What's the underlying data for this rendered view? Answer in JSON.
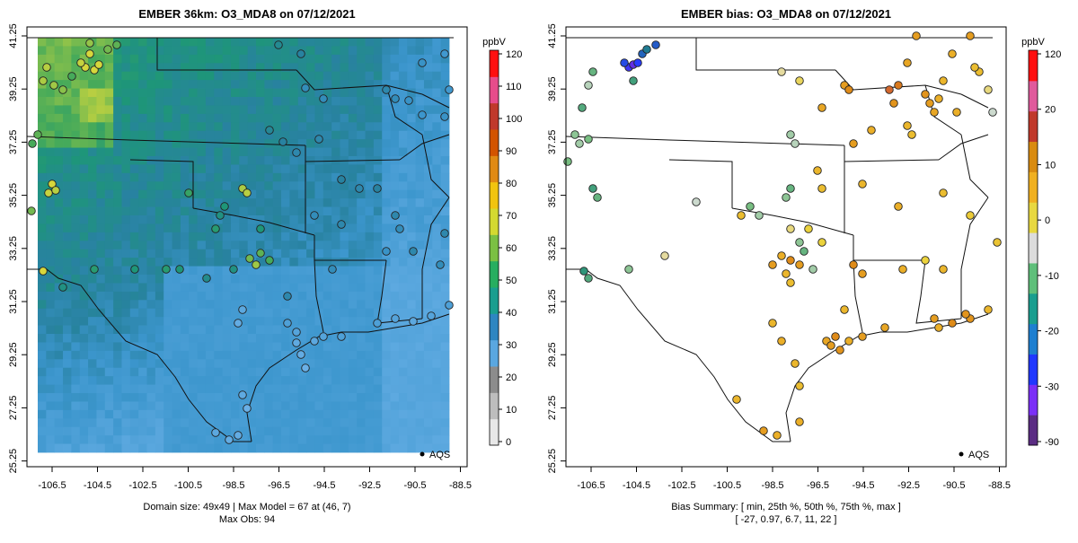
{
  "left_panel": {
    "title": "EMBER 36km: O3_MDA8 on 07/12/2021",
    "x_ticks": [
      "-106.5",
      "-104.5",
      "-102.5",
      "-100.5",
      "-98.5",
      "-96.5",
      "-94.5",
      "-92.5",
      "-90.5",
      "-88.5"
    ],
    "y_ticks": [
      "41.25",
      "39.25",
      "37.25",
      "35.25",
      "33.25",
      "31.25",
      "29.25",
      "27.25",
      "25.25"
    ],
    "legend_label": "AQS",
    "footer_line1": "Domain size: 49x49 | Max Model = 67 at (46, 7)",
    "footer_line2": "Max Obs: 94",
    "colorbar": {
      "unit": "ppbV",
      "ticks": [
        "0",
        "10",
        "20",
        "30",
        "40",
        "50",
        "60",
        "70",
        "80",
        "90",
        "100",
        "110",
        "120"
      ],
      "range": [
        0,
        120
      ],
      "colors": [
        "#e8e8e8",
        "#bdbdbd",
        "#8c8c8c",
        "#5aa7e0",
        "#2e86c1",
        "#1a9e8f",
        "#27ae60",
        "#7bc043",
        "#d4d930",
        "#f1c40f",
        "#e08a14",
        "#d35400",
        "#c0392b",
        "#e74c8b",
        "#ff1010"
      ]
    }
  },
  "right_panel": {
    "title": "EMBER bias: O3_MDA8 on 07/12/2021",
    "x_ticks": [
      "-106.5",
      "-104.5",
      "-102.5",
      "-100.5",
      "-98.5",
      "-96.5",
      "-94.5",
      "-92.5",
      "-90.5",
      "-88.5"
    ],
    "y_ticks": [
      "41.25",
      "39.25",
      "37.25",
      "35.25",
      "33.25",
      "31.25",
      "29.25",
      "27.25",
      "25.25"
    ],
    "legend_label": "AQS",
    "footer_line1": "Bias Summary: [ min, 25th %, 50th %, 75th %, max ]",
    "footer_line2": "[ -27,  0.97,  6.7,  11,  22 ]",
    "colorbar": {
      "unit": "ppbV",
      "ticks": [
        "-90",
        "-30",
        "-20",
        "-10",
        "0",
        "10",
        "20",
        "120"
      ],
      "colors": [
        "#5b2c83",
        "#7b2ff7",
        "#2038ff",
        "#1e7fd0",
        "#1a9e8f",
        "#5fbf7a",
        "#dcdcdc",
        "#e8d840",
        "#f0b020",
        "#d98b10",
        "#c0392b",
        "#e05a9c",
        "#ff1010"
      ]
    }
  }
}
